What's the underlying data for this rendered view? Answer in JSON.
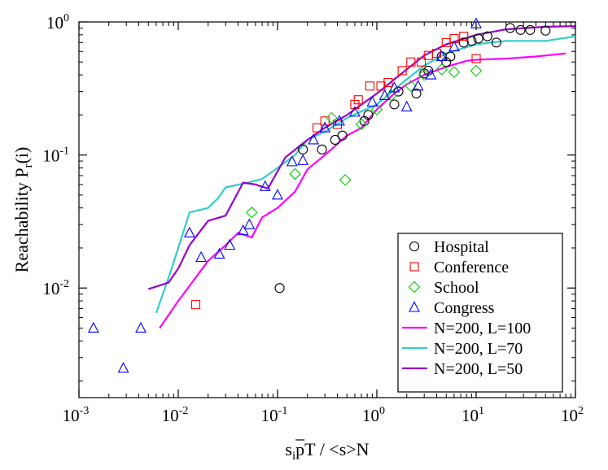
{
  "chart_data": {
    "type": "scatter",
    "title": "",
    "xlabel_parts": {
      "pre": "s",
      "sub": "i",
      "mid": "p",
      "post": "T / <s>N"
    },
    "ylabel_parts": {
      "pre": "Reachability P",
      "sub": "r",
      "post": "(i)"
    },
    "xscale": "log",
    "yscale": "log",
    "xlim": [
      0.001,
      100
    ],
    "ylim": [
      0.0015,
      1.0
    ],
    "grid": false,
    "legend_position": "bottom-right",
    "x_ticks": [
      {
        "base": "10",
        "exp": "-3",
        "value": 0.001
      },
      {
        "base": "10",
        "exp": "-2",
        "value": 0.01
      },
      {
        "base": "10",
        "exp": "-1",
        "value": 0.1
      },
      {
        "base": "10",
        "exp": "0",
        "value": 1
      },
      {
        "base": "10",
        "exp": "1",
        "value": 10
      },
      {
        "base": "10",
        "exp": "2",
        "value": 100
      }
    ],
    "y_ticks": [
      {
        "base": "10",
        "exp": "-2",
        "value": 0.01
      },
      {
        "base": "10",
        "exp": "-1",
        "value": 0.1
      },
      {
        "base": "10",
        "exp": "0",
        "value": 1
      }
    ],
    "scatter_series": [
      {
        "name": "Hospital",
        "marker": "circle",
        "color": "#000000",
        "points": [
          [
            0.105,
            0.01
          ],
          [
            0.18,
            0.11
          ],
          [
            0.28,
            0.11
          ],
          [
            0.38,
            0.13
          ],
          [
            0.45,
            0.14
          ],
          [
            0.75,
            0.18
          ],
          [
            0.82,
            0.2
          ],
          [
            1.5,
            0.24
          ],
          [
            1.65,
            0.3
          ],
          [
            2.5,
            0.29
          ],
          [
            3.0,
            0.41
          ],
          [
            3.3,
            0.43
          ],
          [
            4.5,
            0.55
          ],
          [
            5.0,
            0.5
          ],
          [
            5.5,
            0.55
          ],
          [
            7.5,
            0.7
          ],
          [
            9.0,
            0.72
          ],
          [
            10.5,
            0.75
          ],
          [
            13.0,
            0.78
          ],
          [
            16.0,
            0.7
          ],
          [
            22.0,
            0.9
          ],
          [
            28.0,
            0.87
          ],
          [
            35.0,
            0.87
          ],
          [
            50.0,
            0.86
          ]
        ]
      },
      {
        "name": "Conference",
        "marker": "square",
        "color": "#ff0000",
        "points": [
          [
            0.015,
            0.0075
          ],
          [
            0.25,
            0.16
          ],
          [
            0.3,
            0.18
          ],
          [
            0.4,
            0.17
          ],
          [
            0.6,
            0.24
          ],
          [
            0.65,
            0.26
          ],
          [
            0.85,
            0.33
          ],
          [
            1.1,
            0.33
          ],
          [
            1.3,
            0.35
          ],
          [
            1.8,
            0.43
          ],
          [
            2.2,
            0.5
          ],
          [
            2.8,
            0.5
          ],
          [
            3.3,
            0.56
          ],
          [
            4.0,
            0.58
          ],
          [
            5.0,
            0.7
          ],
          [
            6.0,
            0.75
          ],
          [
            7.5,
            0.78
          ],
          [
            10.0,
            0.53
          ]
        ]
      },
      {
        "name": "School",
        "marker": "diamond",
        "color": "#00cc00",
        "points": [
          [
            0.055,
            0.037
          ],
          [
            0.15,
            0.072
          ],
          [
            0.35,
            0.19
          ],
          [
            0.48,
            0.065
          ],
          [
            0.7,
            0.17
          ],
          [
            1.0,
            0.22
          ],
          [
            1.4,
            0.28
          ],
          [
            2.2,
            0.33
          ],
          [
            3.0,
            0.4
          ],
          [
            4.5,
            0.44
          ],
          [
            6.0,
            0.42
          ],
          [
            10.0,
            0.43
          ]
        ]
      },
      {
        "name": "Congress",
        "marker": "triangle",
        "color": "#0000ff",
        "points": [
          [
            0.0014,
            0.005
          ],
          [
            0.0028,
            0.0025
          ],
          [
            0.0042,
            0.005
          ],
          [
            0.013,
            0.026
          ],
          [
            0.017,
            0.017
          ],
          [
            0.026,
            0.018
          ],
          [
            0.033,
            0.021
          ],
          [
            0.045,
            0.027
          ],
          [
            0.052,
            0.03
          ],
          [
            0.075,
            0.058
          ],
          [
            0.1,
            0.05
          ],
          [
            0.14,
            0.089
          ],
          [
            0.18,
            0.091
          ],
          [
            0.23,
            0.13
          ],
          [
            0.3,
            0.16
          ],
          [
            0.42,
            0.18
          ],
          [
            0.6,
            0.21
          ],
          [
            0.9,
            0.25
          ],
          [
            1.2,
            0.28
          ],
          [
            1.5,
            0.32
          ],
          [
            2.0,
            0.23
          ],
          [
            2.6,
            0.33
          ],
          [
            3.5,
            0.4
          ],
          [
            4.5,
            0.55
          ],
          [
            6.0,
            0.65
          ],
          [
            10.0,
            0.97
          ]
        ]
      }
    ],
    "line_series": [
      {
        "name": "N=200, L=100",
        "color": "#ff00ff",
        "points": [
          [
            0.0065,
            0.005
          ],
          [
            0.01,
            0.008
          ],
          [
            0.015,
            0.012
          ],
          [
            0.02,
            0.016
          ],
          [
            0.03,
            0.021
          ],
          [
            0.04,
            0.026
          ],
          [
            0.055,
            0.024
          ],
          [
            0.07,
            0.034
          ],
          [
            0.1,
            0.04
          ],
          [
            0.15,
            0.053
          ],
          [
            0.2,
            0.078
          ],
          [
            0.3,
            0.1
          ],
          [
            0.5,
            0.14
          ],
          [
            0.7,
            0.16
          ],
          [
            1.0,
            0.22
          ],
          [
            1.5,
            0.29
          ],
          [
            2.0,
            0.34
          ],
          [
            3.0,
            0.4
          ],
          [
            5.0,
            0.46
          ],
          [
            8.0,
            0.51
          ],
          [
            10.0,
            0.52
          ],
          [
            20.0,
            0.53
          ],
          [
            40.0,
            0.55
          ],
          [
            80.0,
            0.58
          ]
        ]
      },
      {
        "name": "N=200, L=70",
        "color": "#33cccc",
        "points": [
          [
            0.006,
            0.0065
          ],
          [
            0.008,
            0.012
          ],
          [
            0.01,
            0.02
          ],
          [
            0.013,
            0.037
          ],
          [
            0.02,
            0.04
          ],
          [
            0.025,
            0.047
          ],
          [
            0.03,
            0.057
          ],
          [
            0.05,
            0.062
          ],
          [
            0.07,
            0.066
          ],
          [
            0.1,
            0.08
          ],
          [
            0.15,
            0.1
          ],
          [
            0.2,
            0.13
          ],
          [
            0.3,
            0.15
          ],
          [
            0.5,
            0.19
          ],
          [
            1.0,
            0.24
          ],
          [
            2.0,
            0.37
          ],
          [
            3.0,
            0.47
          ],
          [
            5.0,
            0.58
          ],
          [
            10.0,
            0.68
          ],
          [
            20.0,
            0.72
          ],
          [
            50.0,
            0.72
          ],
          [
            100.0,
            0.78
          ]
        ]
      },
      {
        "name": "N=200, L=50",
        "color": "#9900cc",
        "points": [
          [
            0.005,
            0.0098
          ],
          [
            0.008,
            0.011
          ],
          [
            0.01,
            0.014
          ],
          [
            0.013,
            0.021
          ],
          [
            0.02,
            0.032
          ],
          [
            0.03,
            0.035
          ],
          [
            0.045,
            0.062
          ],
          [
            0.06,
            0.06
          ],
          [
            0.08,
            0.056
          ],
          [
            0.12,
            0.096
          ],
          [
            0.2,
            0.13
          ],
          [
            0.3,
            0.16
          ],
          [
            0.5,
            0.2
          ],
          [
            1.0,
            0.29
          ],
          [
            2.0,
            0.44
          ],
          [
            3.0,
            0.56
          ],
          [
            5.0,
            0.68
          ],
          [
            10.0,
            0.8
          ],
          [
            20.0,
            0.88
          ],
          [
            50.0,
            0.92
          ],
          [
            100.0,
            0.93
          ]
        ]
      }
    ],
    "legend_entries": [
      "Hospital",
      "Conference",
      "School",
      "Congress",
      "N=200, L=100",
      "N=200, L=70",
      "N=200, L=50"
    ]
  }
}
